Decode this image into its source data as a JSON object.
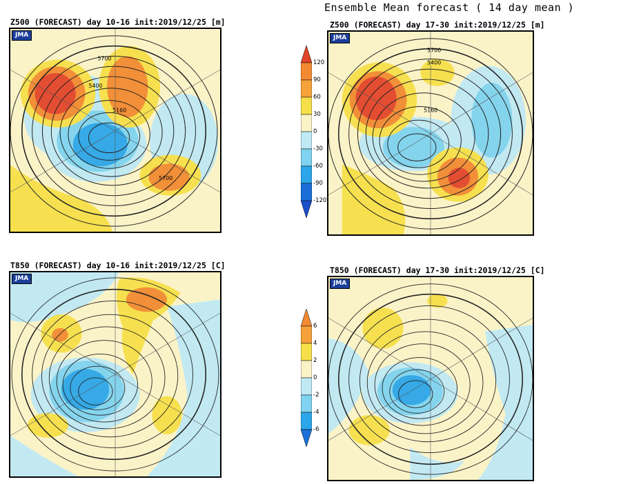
{
  "main_title": "Ensemble Mean forecast ( 14 day mean )",
  "panels": {
    "z500_a": {
      "title": "Z500 (FORECAST) day 10-16 init:2019/12/25  [m]",
      "logo": "JMA",
      "contour_labels": [
        "5700",
        "5400",
        "5160",
        "5700"
      ]
    },
    "z500_b": {
      "title": "Z500 (FORECAST) day 17-30 init:2019/12/25  [m]",
      "logo": "JMA",
      "contour_labels": [
        "5700",
        "5400",
        "5160"
      ]
    },
    "t850_a": {
      "title": "T850 (FORECAST) day 10-16 init:2019/12/25  [C]",
      "logo": "JMA"
    },
    "t850_b": {
      "title": "T850 (FORECAST) day 17-30 init:2019/12/25  [C]",
      "logo": "JMA"
    }
  },
  "colorbars": {
    "z500": {
      "ticks": [
        "120",
        "90",
        "60",
        "30",
        "0",
        "-30",
        "-60",
        "-90",
        "-120"
      ]
    },
    "t850": {
      "ticks": [
        "6",
        "4",
        "2",
        "0",
        "-2",
        "-4",
        "-6"
      ]
    }
  },
  "colors": {
    "strong_pos": "#e2452a",
    "mid_pos": "#f28a32",
    "weak_pos": "#f6e04a",
    "neutral": "#fbf3c8",
    "weak_neg": "#bfe9f5",
    "mid_neg": "#7fd3ef",
    "strong_neg": "#2ca6e8",
    "deep_neg": "#1c6fd8"
  }
}
